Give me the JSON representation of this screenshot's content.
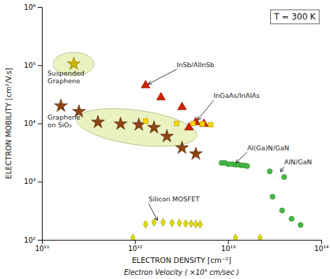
{
  "chart_data": {
    "type": "scatter",
    "title": "T = 300 K",
    "xlabel": "ELECTRON DENSITY [cm⁻²]",
    "xlabel2": "Electron Velocity ( ×10⁵ cm/sec )",
    "ylabel": "ELECTRON MOBILITY [cm²/V.s]",
    "log": true,
    "grid": false,
    "xlim": [
      100000000000.0,
      100000000000000.0
    ],
    "ylim": [
      100,
      1000000
    ],
    "xticks": [
      {
        "value": 100000000000.0,
        "label": "10¹¹"
      },
      {
        "value": 1000000000000.0,
        "label": "10¹²"
      },
      {
        "value": 10000000000000.0,
        "label": "10¹³"
      },
      {
        "value": 100000000000000.0,
        "label": "10¹⁴"
      }
    ],
    "yticks": [
      {
        "value": 100,
        "label": "10²"
      },
      {
        "value": 1000,
        "label": "10³"
      },
      {
        "value": 10000,
        "label": "10⁴"
      },
      {
        "value": 100000,
        "label": "10⁵"
      },
      {
        "value": 1000000,
        "label": "10⁶"
      }
    ],
    "regions": [
      {
        "center_x_log": 12.02,
        "center_y_log": 3.93,
        "width_log": 1.32,
        "height_log": 0.58,
        "angle": -14,
        "color": "#d8e890"
      },
      {
        "center_x_log": 11.34,
        "center_y_log": 5.02,
        "radius_log_x": 0.22,
        "radius_log_y": 0.2,
        "color": "#d8e890"
      }
    ],
    "series": [
      {
        "x": [
          220000000000.0
        ],
        "values": [
          105000.0
        ],
        "color": "#c8b400",
        "marker": "star"
      },
      {
        "x": [
          160000000000.0,
          250000000000.0,
          400000000000.0,
          700000000000.0,
          1100000000000.0,
          1600000000000.0,
          2200000000000.0,
          3200000000000.0,
          4500000000000.0
        ],
        "values": [
          20000.0,
          16000.0,
          10500.0,
          9800,
          9500,
          8500,
          6000,
          3800,
          3000
        ],
        "color": "#8B4513",
        "marker": "star"
      },
      {
        "x": [
          1300000000000.0,
          1900000000000.0,
          3800000000000.0
        ],
        "values": [
          45000.0,
          28000.0,
          8500
        ],
        "color": "#CC2200",
        "marker": "triangle"
      },
      {
        "x": [
          3200000000000.0,
          4500000000000.0,
          5500000000000.0
        ],
        "values": [
          19000.0,
          10500.0,
          9800
        ],
        "color": "#CC2200",
        "marker": "triangle"
      },
      {
        "x": [
          1300000000000.0,
          2800000000000.0,
          4200000000000.0,
          5300000000000.0,
          6500000000000.0
        ],
        "values": [
          11000.0,
          10000.0,
          10000.0,
          9800,
          9500
        ],
        "color": "#FFD700",
        "marker": "square"
      },
      {
        "x": [
          8500000000000.0,
          9200000000000.0,
          10000000000000.0,
          11000000000000.0,
          12000000000000.0,
          13000000000000.0,
          14000000000000.0,
          15000000000000.0,
          16000000000000.0
        ],
        "values": [
          2100,
          2100,
          2000,
          2000,
          1950,
          1950,
          1900,
          1900,
          1850
        ],
        "color": "#44BB44",
        "marker": "circle"
      },
      {
        "x": [
          28000000000000.0,
          40000000000000.0
        ],
        "values": [
          1500,
          1200
        ],
        "color": "#44BB44",
        "marker": "circle"
      },
      {
        "x": [
          30000000000000.0,
          38000000000000.0,
          48000000000000.0,
          60000000000000.0
        ],
        "values": [
          550,
          320,
          230,
          180
        ],
        "color": "#44BB44",
        "marker": "circle"
      },
      {
        "x": [
          950000000000.0,
          1300000000000.0,
          1600000000000.0,
          2000000000000.0,
          2500000000000.0,
          3000000000000.0,
          3500000000000.0,
          4000000000000.0,
          4500000000000.0,
          5000000000000.0,
          12000000000000.0,
          22000000000000.0
        ],
        "values": [
          108,
          185,
          200,
          200,
          195,
          195,
          190,
          190,
          185,
          185,
          108,
          108
        ],
        "color": "#DDDD00",
        "marker": "diamond"
      }
    ],
    "annotations": [
      {
        "text": "Suspended\nGraphene",
        "x": 115000000000.0,
        "y": 85000.0
      },
      {
        "text": "InSb/AllnSb",
        "x": 2800000000000.0,
        "y": 85000.0,
        "arrow_x": 1300000000000.0,
        "arrow_y": 45000.0
      },
      {
        "text": "InGaAs/InAlAs",
        "x": 7000000000000.0,
        "y": 25000.0,
        "arrow_x": 4500000000000.0,
        "arrow_y": 10500.0
      },
      {
        "text": "Graphene\non SiO₂",
        "x": 115000000000.0,
        "y": 15000.0
      },
      {
        "text": "Al(Ga)N/GaN",
        "x": 16000000000000.0,
        "y": 3200,
        "arrow_x": 11500000000000.0,
        "arrow_y": 1950
      },
      {
        "text": "AlN/GaN",
        "x": 40000000000000.0,
        "y": 1800,
        "arrow_x": 35000000000000.0,
        "arrow_y": 1350
      },
      {
        "text": "Silicon MOSFET",
        "x": 1400000000000.0,
        "y": 420,
        "arrow_x": 1800000000000.0,
        "arrow_y": 195
      }
    ]
  }
}
